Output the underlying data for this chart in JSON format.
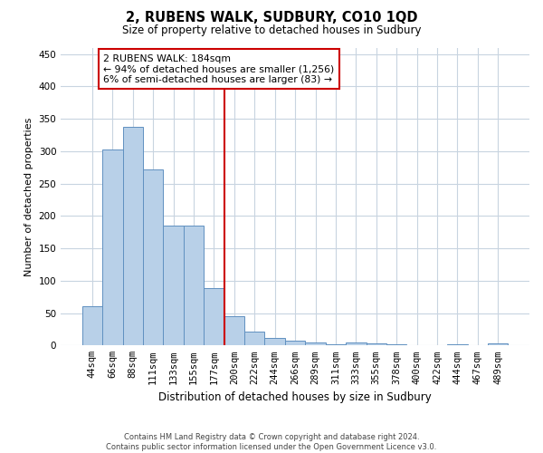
{
  "title": "2, RUBENS WALK, SUDBURY, CO10 1QD",
  "subtitle": "Size of property relative to detached houses in Sudbury",
  "xlabel": "Distribution of detached houses by size in Sudbury",
  "ylabel": "Number of detached properties",
  "bar_labels": [
    "44sqm",
    "66sqm",
    "88sqm",
    "111sqm",
    "133sqm",
    "155sqm",
    "177sqm",
    "200sqm",
    "222sqm",
    "244sqm",
    "266sqm",
    "289sqm",
    "311sqm",
    "333sqm",
    "355sqm",
    "378sqm",
    "400sqm",
    "422sqm",
    "444sqm",
    "467sqm",
    "489sqm"
  ],
  "bar_values": [
    60,
    303,
    337,
    272,
    185,
    185,
    88,
    45,
    21,
    12,
    7,
    4,
    2,
    4,
    3,
    2,
    0,
    0,
    2,
    0,
    3
  ],
  "bar_color": "#b8d0e8",
  "bar_edge_color": "#6090c0",
  "vline_color": "#cc0000",
  "annotation_text": "2 RUBENS WALK: 184sqm\n← 94% of detached houses are smaller (1,256)\n6% of semi-detached houses are larger (83) →",
  "annotation_box_color": "#ffffff",
  "annotation_box_edge_color": "#cc0000",
  "ylim": [
    0,
    460
  ],
  "yticks": [
    0,
    50,
    100,
    150,
    200,
    250,
    300,
    350,
    400,
    450
  ],
  "footer": "Contains HM Land Registry data © Crown copyright and database right 2024.\nContains public sector information licensed under the Open Government Licence v3.0.",
  "background_color": "#ffffff",
  "grid_color": "#c8d4e0"
}
